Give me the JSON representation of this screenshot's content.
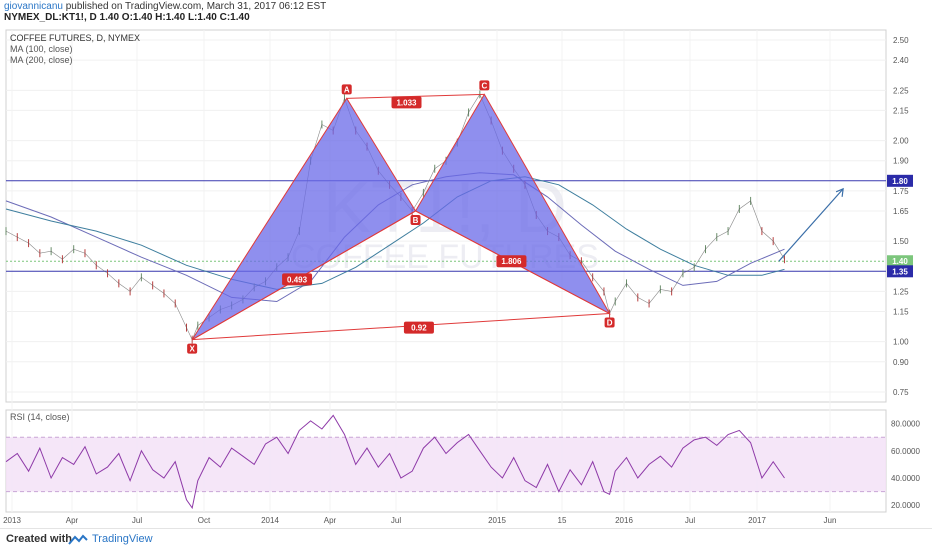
{
  "header": {
    "user": "giovannicanu",
    "published_text": " published on TradingView.com, March 31, 2017 06:12 EST",
    "ohlc_line": "NYMEX_DL:KT1!, D 1.40 O:1.40 H:1.40 L:1.40 C:1.40"
  },
  "footer": {
    "created": "Created with",
    "brand": "TradingView"
  },
  "chart_data": [
    {
      "type": "line",
      "title": "COFFEE FUTURES, D, NYMEX",
      "watermark_symbol": "KT1!, D",
      "watermark_name": "COFFEE FUTURES",
      "indicators": [
        "MA (100, close)",
        "MA (200, close)"
      ],
      "x_ticks": [
        "2013",
        "Apr",
        "Jul",
        "Oct",
        "2014",
        "Apr",
        "Jul",
        "2015",
        "15",
        "2016",
        "Jul",
        "2017",
        "Jun"
      ],
      "y_ticks": [
        "0.75",
        "0.90",
        "1.00",
        "1.15",
        "1.25",
        "1.35",
        "1.50",
        "1.65",
        "1.75",
        "1.90",
        "2.00",
        "2.15",
        "2.25",
        "2.40",
        "2.50"
      ],
      "ylim": [
        0.7,
        2.55
      ],
      "grid": true,
      "price_labels": [
        {
          "text": "1.80",
          "value": 1.8,
          "color": "#2b2ba8"
        },
        {
          "text": "1.40",
          "value": 1.4,
          "color": "#7cc67c"
        },
        {
          "text": "1.35",
          "value": 1.35,
          "color": "#2b2ba8"
        }
      ],
      "horizontal_lines": [
        1.8,
        1.35
      ],
      "harmonic_pattern": {
        "points": [
          {
            "label": "X",
            "t": 16.5,
            "price": 1.01
          },
          {
            "label": "A",
            "t": 30.2,
            "price": 2.21
          },
          {
            "label": "B",
            "t": 36.3,
            "price": 1.65
          },
          {
            "label": "C",
            "t": 42.4,
            "price": 2.23
          },
          {
            "label": "D",
            "t": 53.5,
            "price": 1.14
          }
        ],
        "ratios": [
          {
            "text": "0.493",
            "t": 25.8,
            "price": 1.31
          },
          {
            "text": "1.033",
            "t": 35.5,
            "price": 2.19
          },
          {
            "text": "1.806",
            "t": 44.8,
            "price": 1.4
          },
          {
            "text": "0.92",
            "t": 36.6,
            "price": 1.07
          }
        ]
      },
      "arrow": {
        "from": {
          "t": 68.5,
          "price": 1.4
        },
        "to": {
          "t": 74.2,
          "price": 1.76
        }
      },
      "series": [
        {
          "name": "price",
          "points": [
            [
              0,
              1.55
            ],
            [
              1,
              1.52
            ],
            [
              2,
              1.49
            ],
            [
              3,
              1.44
            ],
            [
              4,
              1.45
            ],
            [
              5,
              1.41
            ],
            [
              6,
              1.46
            ],
            [
              7,
              1.44
            ],
            [
              8,
              1.38
            ],
            [
              9,
              1.34
            ],
            [
              10,
              1.29
            ],
            [
              11,
              1.25
            ],
            [
              12,
              1.32
            ],
            [
              13,
              1.28
            ],
            [
              14,
              1.24
            ],
            [
              15,
              1.19
            ],
            [
              16,
              1.07
            ],
            [
              16.5,
              1.01
            ],
            [
              17,
              1.08
            ],
            [
              18,
              1.12
            ],
            [
              19,
              1.16
            ],
            [
              20,
              1.18
            ],
            [
              21,
              1.21
            ],
            [
              22,
              1.27
            ],
            [
              23,
              1.3
            ],
            [
              24,
              1.37
            ],
            [
              25,
              1.42
            ],
            [
              26,
              1.55
            ],
            [
              27,
              1.9
            ],
            [
              28,
              2.08
            ],
            [
              29,
              2.05
            ],
            [
              30,
              2.21
            ],
            [
              31,
              2.05
            ],
            [
              32,
              1.97
            ],
            [
              33,
              1.85
            ],
            [
              34,
              1.78
            ],
            [
              35,
              1.72
            ],
            [
              36,
              1.65
            ],
            [
              37,
              1.74
            ],
            [
              38,
              1.86
            ],
            [
              39,
              1.9
            ],
            [
              40,
              1.99
            ],
            [
              41,
              2.14
            ],
            [
              42,
              2.23
            ],
            [
              43,
              2.1
            ],
            [
              44,
              1.95
            ],
            [
              45,
              1.86
            ],
            [
              46,
              1.78
            ],
            [
              47,
              1.63
            ],
            [
              48,
              1.55
            ],
            [
              49,
              1.52
            ],
            [
              50,
              1.43
            ],
            [
              51,
              1.4
            ],
            [
              52,
              1.32
            ],
            [
              53,
              1.25
            ],
            [
              53.5,
              1.14
            ],
            [
              54,
              1.2
            ],
            [
              55,
              1.29
            ],
            [
              56,
              1.22
            ],
            [
              57,
              1.19
            ],
            [
              58,
              1.26
            ],
            [
              59,
              1.25
            ],
            [
              60,
              1.34
            ],
            [
              61,
              1.37
            ],
            [
              62,
              1.46
            ],
            [
              63,
              1.52
            ],
            [
              64,
              1.55
            ],
            [
              65,
              1.66
            ],
            [
              66,
              1.7
            ],
            [
              67,
              1.55
            ],
            [
              68,
              1.5
            ],
            [
              69,
              1.41
            ]
          ]
        },
        {
          "name": "MA (100, close)",
          "points": [
            [
              0,
              1.7
            ],
            [
              4,
              1.62
            ],
            [
              8,
              1.52
            ],
            [
              12,
              1.42
            ],
            [
              16,
              1.33
            ],
            [
              20,
              1.22
            ],
            [
              24,
              1.2
            ],
            [
              27,
              1.3
            ],
            [
              30,
              1.52
            ],
            [
              33,
              1.68
            ],
            [
              36,
              1.78
            ],
            [
              39,
              1.82
            ],
            [
              42,
              1.84
            ],
            [
              45,
              1.83
            ],
            [
              48,
              1.72
            ],
            [
              51,
              1.58
            ],
            [
              54,
              1.45
            ],
            [
              57,
              1.36
            ],
            [
              60,
              1.28
            ],
            [
              63,
              1.3
            ],
            [
              66,
              1.39
            ],
            [
              69,
              1.46
            ]
          ]
        },
        {
          "name": "MA (200, close)",
          "points": [
            [
              0,
              1.66
            ],
            [
              4,
              1.6
            ],
            [
              8,
              1.55
            ],
            [
              12,
              1.48
            ],
            [
              16,
              1.38
            ],
            [
              20,
              1.31
            ],
            [
              24,
              1.26
            ],
            [
              28,
              1.29
            ],
            [
              31,
              1.37
            ],
            [
              34,
              1.48
            ],
            [
              37,
              1.59
            ],
            [
              40,
              1.72
            ],
            [
              43,
              1.8
            ],
            [
              46,
              1.82
            ],
            [
              49,
              1.78
            ],
            [
              52,
              1.68
            ],
            [
              55,
              1.56
            ],
            [
              58,
              1.46
            ],
            [
              61,
              1.38
            ],
            [
              64,
              1.33
            ],
            [
              67,
              1.33
            ],
            [
              69,
              1.36
            ]
          ]
        }
      ]
    },
    {
      "type": "line",
      "title": "RSI (14, close)",
      "y_ticks": [
        "20.0000",
        "40.0000",
        "60.0000",
        "80.0000"
      ],
      "ylim": [
        15,
        90
      ],
      "band": [
        30,
        70
      ],
      "series": [
        {
          "name": "RSI",
          "points": [
            [
              0,
              52
            ],
            [
              1,
              58
            ],
            [
              2,
              45
            ],
            [
              3,
              62
            ],
            [
              4,
              40
            ],
            [
              5,
              55
            ],
            [
              6,
              50
            ],
            [
              7,
              63
            ],
            [
              8,
              43
            ],
            [
              9,
              48
            ],
            [
              10,
              58
            ],
            [
              11,
              38
            ],
            [
              12,
              60
            ],
            [
              13,
              46
            ],
            [
              14,
              40
            ],
            [
              15,
              52
            ],
            [
              16,
              24
            ],
            [
              16.5,
              18
            ],
            [
              17,
              38
            ],
            [
              18,
              55
            ],
            [
              19,
              48
            ],
            [
              20,
              62
            ],
            [
              21,
              56
            ],
            [
              22,
              50
            ],
            [
              23,
              65
            ],
            [
              24,
              70
            ],
            [
              25,
              58
            ],
            [
              26,
              75
            ],
            [
              27,
              82
            ],
            [
              28,
              76
            ],
            [
              29,
              86
            ],
            [
              30,
              72
            ],
            [
              31,
              50
            ],
            [
              32,
              62
            ],
            [
              33,
              48
            ],
            [
              34,
              58
            ],
            [
              35,
              40
            ],
            [
              36,
              45
            ],
            [
              37,
              62
            ],
            [
              38,
              70
            ],
            [
              39,
              58
            ],
            [
              40,
              66
            ],
            [
              41,
              72
            ],
            [
              42,
              60
            ],
            [
              43,
              48
            ],
            [
              44,
              40
            ],
            [
              45,
              55
            ],
            [
              46,
              38
            ],
            [
              47,
              33
            ],
            [
              48,
              50
            ],
            [
              49,
              30
            ],
            [
              50,
              46
            ],
            [
              51,
              35
            ],
            [
              52,
              52
            ],
            [
              53,
              30
            ],
            [
              53.5,
              28
            ],
            [
              54,
              45
            ],
            [
              55,
              55
            ],
            [
              56,
              40
            ],
            [
              57,
              50
            ],
            [
              58,
              56
            ],
            [
              59,
              48
            ],
            [
              60,
              62
            ],
            [
              61,
              68
            ],
            [
              62,
              70
            ],
            [
              63,
              64
            ],
            [
              64,
              72
            ],
            [
              65,
              75
            ],
            [
              66,
              66
            ],
            [
              67,
              40
            ],
            [
              68,
              52
            ],
            [
              69,
              40
            ]
          ]
        }
      ]
    }
  ]
}
